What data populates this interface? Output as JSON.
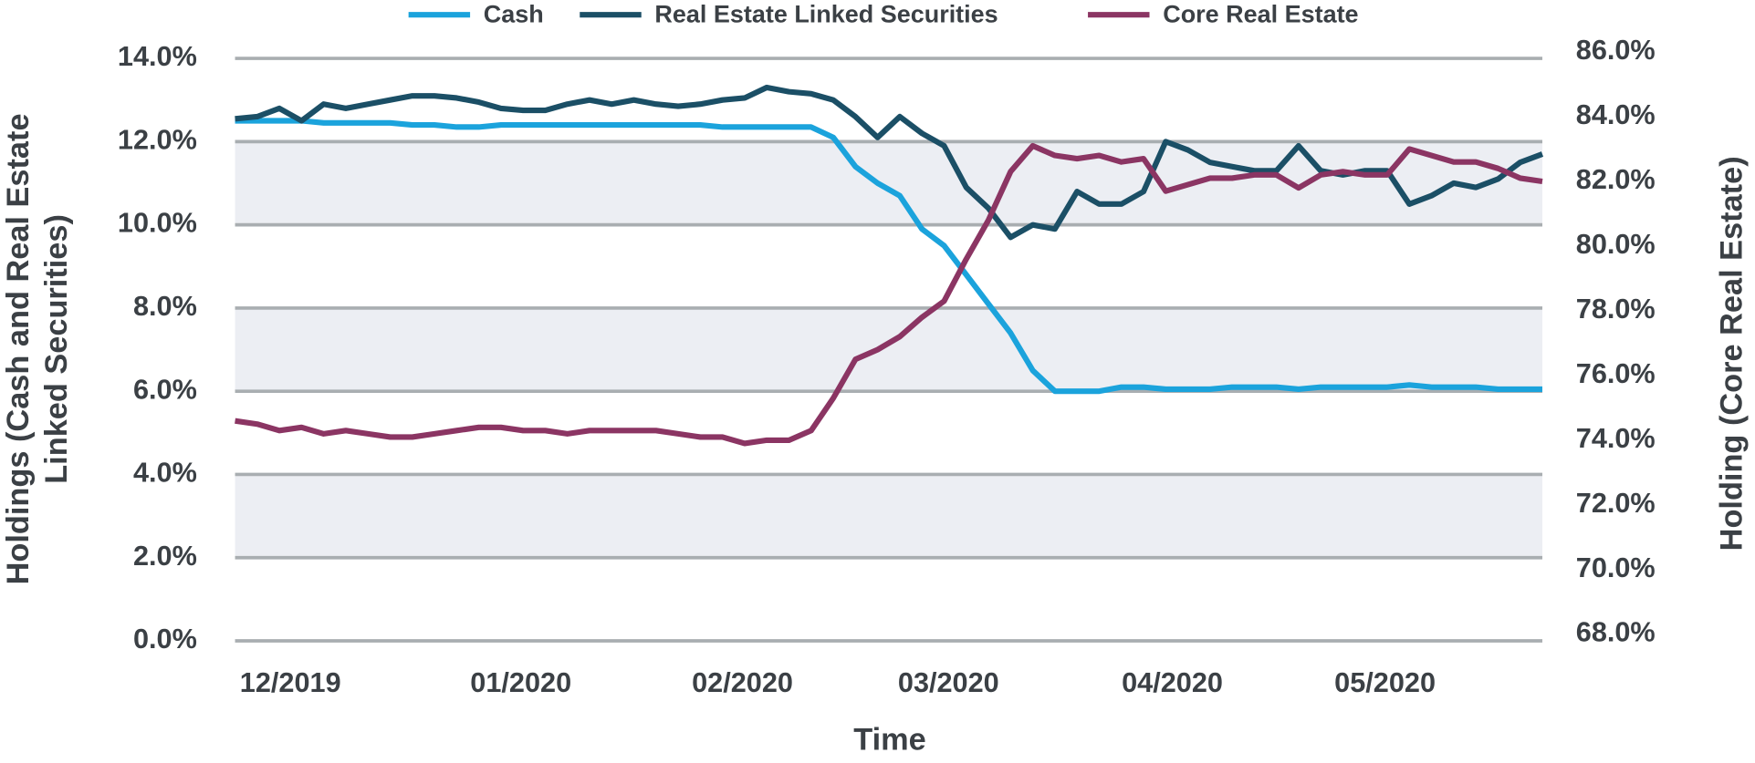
{
  "chart_data": {
    "type": "line",
    "x_label": "Time",
    "y_label": [
      "Holdings (Cash and Real Estate",
      "Linked Securities)"
    ],
    "y2_label": "Holding (Core Real Estate)",
    "x": [
      0,
      1,
      2,
      3,
      4,
      5,
      6,
      7,
      8,
      9,
      10,
      11,
      12,
      13,
      14,
      15,
      16,
      17,
      18,
      19,
      20,
      21,
      22,
      23,
      24,
      25,
      26,
      27,
      28,
      29,
      30,
      31,
      32,
      33,
      34,
      35,
      36,
      37,
      38,
      39,
      40,
      41,
      42,
      43,
      44,
      45,
      46,
      47,
      48,
      49,
      50,
      51,
      52,
      53,
      54,
      55,
      56,
      57,
      58,
      59
    ],
    "xlim": [
      0,
      59
    ],
    "xticks": [
      {
        "value": 2.5,
        "label": "12/2019"
      },
      {
        "value": 12.9,
        "label": "01/2020"
      },
      {
        "value": 22.9,
        "label": "02/2020"
      },
      {
        "value": 32.2,
        "label": "03/2020"
      },
      {
        "value": 42.3,
        "label": "04/2020"
      },
      {
        "value": 51.9,
        "label": "05/2020"
      }
    ],
    "ylim": [
      0,
      14
    ],
    "yticks": [
      {
        "value": 0,
        "label": "0.0%"
      },
      {
        "value": 2,
        "label": "2.0%"
      },
      {
        "value": 4,
        "label": "4.0%"
      },
      {
        "value": 6,
        "label": "6.0%"
      },
      {
        "value": 8,
        "label": "8.0%"
      },
      {
        "value": 10,
        "label": "10.0%"
      },
      {
        "value": 12,
        "label": "12.0%"
      },
      {
        "value": 14,
        "label": "14.0%"
      }
    ],
    "y2lim": [
      68,
      86
    ],
    "y2ticks": [
      {
        "value": 68,
        "label": "68.0%"
      },
      {
        "value": 70,
        "label": "70.0%"
      },
      {
        "value": 72,
        "label": "72.0%"
      },
      {
        "value": 74,
        "label": "74.0%"
      },
      {
        "value": 76,
        "label": "76.0%"
      },
      {
        "value": 78,
        "label": "78.0%"
      },
      {
        "value": 80,
        "label": "80.0%"
      },
      {
        "value": 82,
        "label": "82.0%"
      },
      {
        "value": 84,
        "label": "84.0%"
      },
      {
        "value": 86,
        "label": "86.0%"
      }
    ],
    "grid": true,
    "legend": "top",
    "series": [
      {
        "name": "Cash",
        "color": "#1ba3dc",
        "values": [
          12.5,
          12.5,
          12.5,
          12.5,
          12.45,
          12.45,
          12.45,
          12.45,
          12.4,
          12.4,
          12.35,
          12.35,
          12.4,
          12.4,
          12.4,
          12.4,
          12.4,
          12.4,
          12.4,
          12.4,
          12.4,
          12.4,
          12.35,
          12.35,
          12.35,
          12.35,
          12.35,
          12.1,
          11.4,
          11.0,
          10.7,
          9.9,
          9.5,
          8.8,
          8.1,
          7.4,
          6.5,
          6.0,
          6.0,
          6.0,
          6.1,
          6.1,
          6.05,
          6.05,
          6.05,
          6.1,
          6.1,
          6.1,
          6.05,
          6.1,
          6.1,
          6.1,
          6.1,
          6.15,
          6.1,
          6.1,
          6.1,
          6.05,
          6.05,
          6.05
        ]
      },
      {
        "name": "Real Estate Linked Securities",
        "color": "#1b4f66",
        "values": [
          12.55,
          12.6,
          12.8,
          12.5,
          12.9,
          12.8,
          12.9,
          13.0,
          13.1,
          13.1,
          13.05,
          12.95,
          12.8,
          12.75,
          12.75,
          12.9,
          13.0,
          12.9,
          13.0,
          12.9,
          12.85,
          12.9,
          13.0,
          13.05,
          13.3,
          13.2,
          13.15,
          13.0,
          12.6,
          12.1,
          12.6,
          12.2,
          11.9,
          10.9,
          10.4,
          9.7,
          10.0,
          9.9,
          10.8,
          10.5,
          10.5,
          10.8,
          12.0,
          11.8,
          11.5,
          11.4,
          11.3,
          11.3,
          11.9,
          11.3,
          11.2,
          11.3,
          11.3,
          10.5,
          10.7,
          11.0,
          10.9,
          11.1,
          11.5,
          11.7
        ]
      },
      {
        "name": "Core Real Estate",
        "color": "#8b3563",
        "axis": "y2",
        "values": [
          74.8,
          74.7,
          74.5,
          74.6,
          74.4,
          74.5,
          74.4,
          74.3,
          74.3,
          74.4,
          74.5,
          74.6,
          74.6,
          74.5,
          74.5,
          74.4,
          74.5,
          74.5,
          74.5,
          74.5,
          74.4,
          74.3,
          74.3,
          74.1,
          74.2,
          74.2,
          74.5,
          75.5,
          76.7,
          77.0,
          77.4,
          78.0,
          78.5,
          79.8,
          81.0,
          82.5,
          83.3,
          83.0,
          82.9,
          83.0,
          82.8,
          82.9,
          81.9,
          82.1,
          82.3,
          82.3,
          82.4,
          82.4,
          82.0,
          82.4,
          82.5,
          82.4,
          82.4,
          83.2,
          83.0,
          82.8,
          82.8,
          82.6,
          82.3,
          82.2
        ]
      }
    ]
  }
}
